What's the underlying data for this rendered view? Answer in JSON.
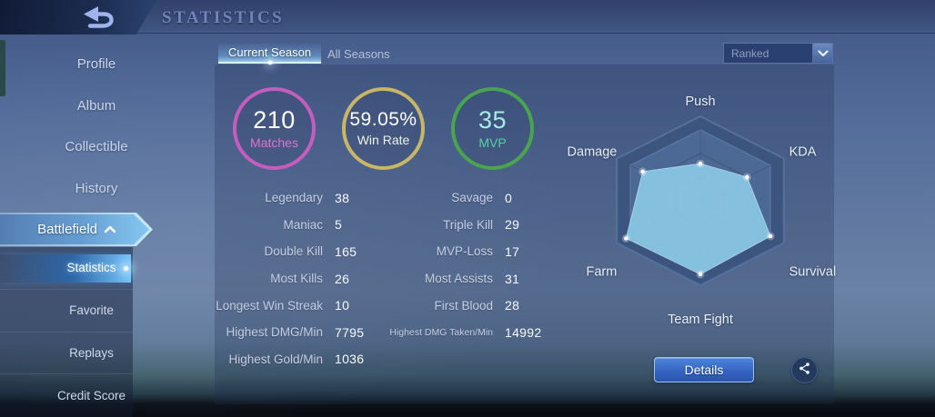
{
  "header": {
    "title": "STATISTICS"
  },
  "sidebar": {
    "items": [
      {
        "label": "Profile"
      },
      {
        "label": "Album"
      },
      {
        "label": "Collectible"
      },
      {
        "label": "History"
      },
      {
        "label": "Battlefield",
        "expanded": true
      }
    ],
    "sub_items": [
      {
        "label": "Statistics",
        "selected": true
      },
      {
        "label": "Favorite"
      },
      {
        "label": "Replays"
      },
      {
        "label": "Credit Score"
      }
    ]
  },
  "tabs": [
    {
      "label": "Current Season",
      "active": true
    },
    {
      "label": "All Seasons",
      "active": false
    }
  ],
  "filter_dropdown": {
    "value": "Ranked"
  },
  "summary_circles": [
    {
      "value": "210",
      "label": "Matches",
      "ring_color": "#c65cbe",
      "value_color": "#ffffff",
      "label_color": "#da74d2"
    },
    {
      "value": "59.05%",
      "label": "Win Rate",
      "ring_color": "#c7b568",
      "value_color": "#ffffff",
      "label_color": "#eef0e6"
    },
    {
      "value": "35",
      "label": "MVP",
      "ring_color": "#48a54e",
      "value_color": "#a3efe1",
      "label_color": "#57cfa6"
    }
  ],
  "stats": {
    "left": [
      {
        "label": "Legendary",
        "value": "38"
      },
      {
        "label": "Maniac",
        "value": "5"
      },
      {
        "label": "Double Kill",
        "value": "165"
      },
      {
        "label": "Most Kills",
        "value": "26"
      },
      {
        "label": "Longest Win Streak",
        "value": "10"
      },
      {
        "label": "Highest DMG/Min",
        "value": "7795"
      },
      {
        "label": "Highest Gold/Min",
        "value": "1036"
      }
    ],
    "right": [
      {
        "label": "Savage",
        "value": "0"
      },
      {
        "label": "Triple Kill",
        "value": "29"
      },
      {
        "label": "MVP-Loss",
        "value": "17"
      },
      {
        "label": "Most Assists",
        "value": "31"
      },
      {
        "label": "First Blood",
        "value": "28"
      },
      {
        "label": "Highest DMG Taken/Min",
        "value": "14992"
      }
    ]
  },
  "chart_data": {
    "type": "radar",
    "axes": [
      "Push",
      "KDA",
      "Survival",
      "Team Fight",
      "Farm",
      "Damage"
    ],
    "values": [
      0.44,
      0.56,
      0.84,
      0.87,
      0.89,
      0.69
    ],
    "max": 1,
    "grid_levels": [
      1,
      0.84,
      0.56,
      0.28
    ],
    "fill_color": "rgba(141,205,232,0.88)",
    "legend_position": "none",
    "title": ""
  },
  "actions": {
    "details_label": "Details"
  }
}
